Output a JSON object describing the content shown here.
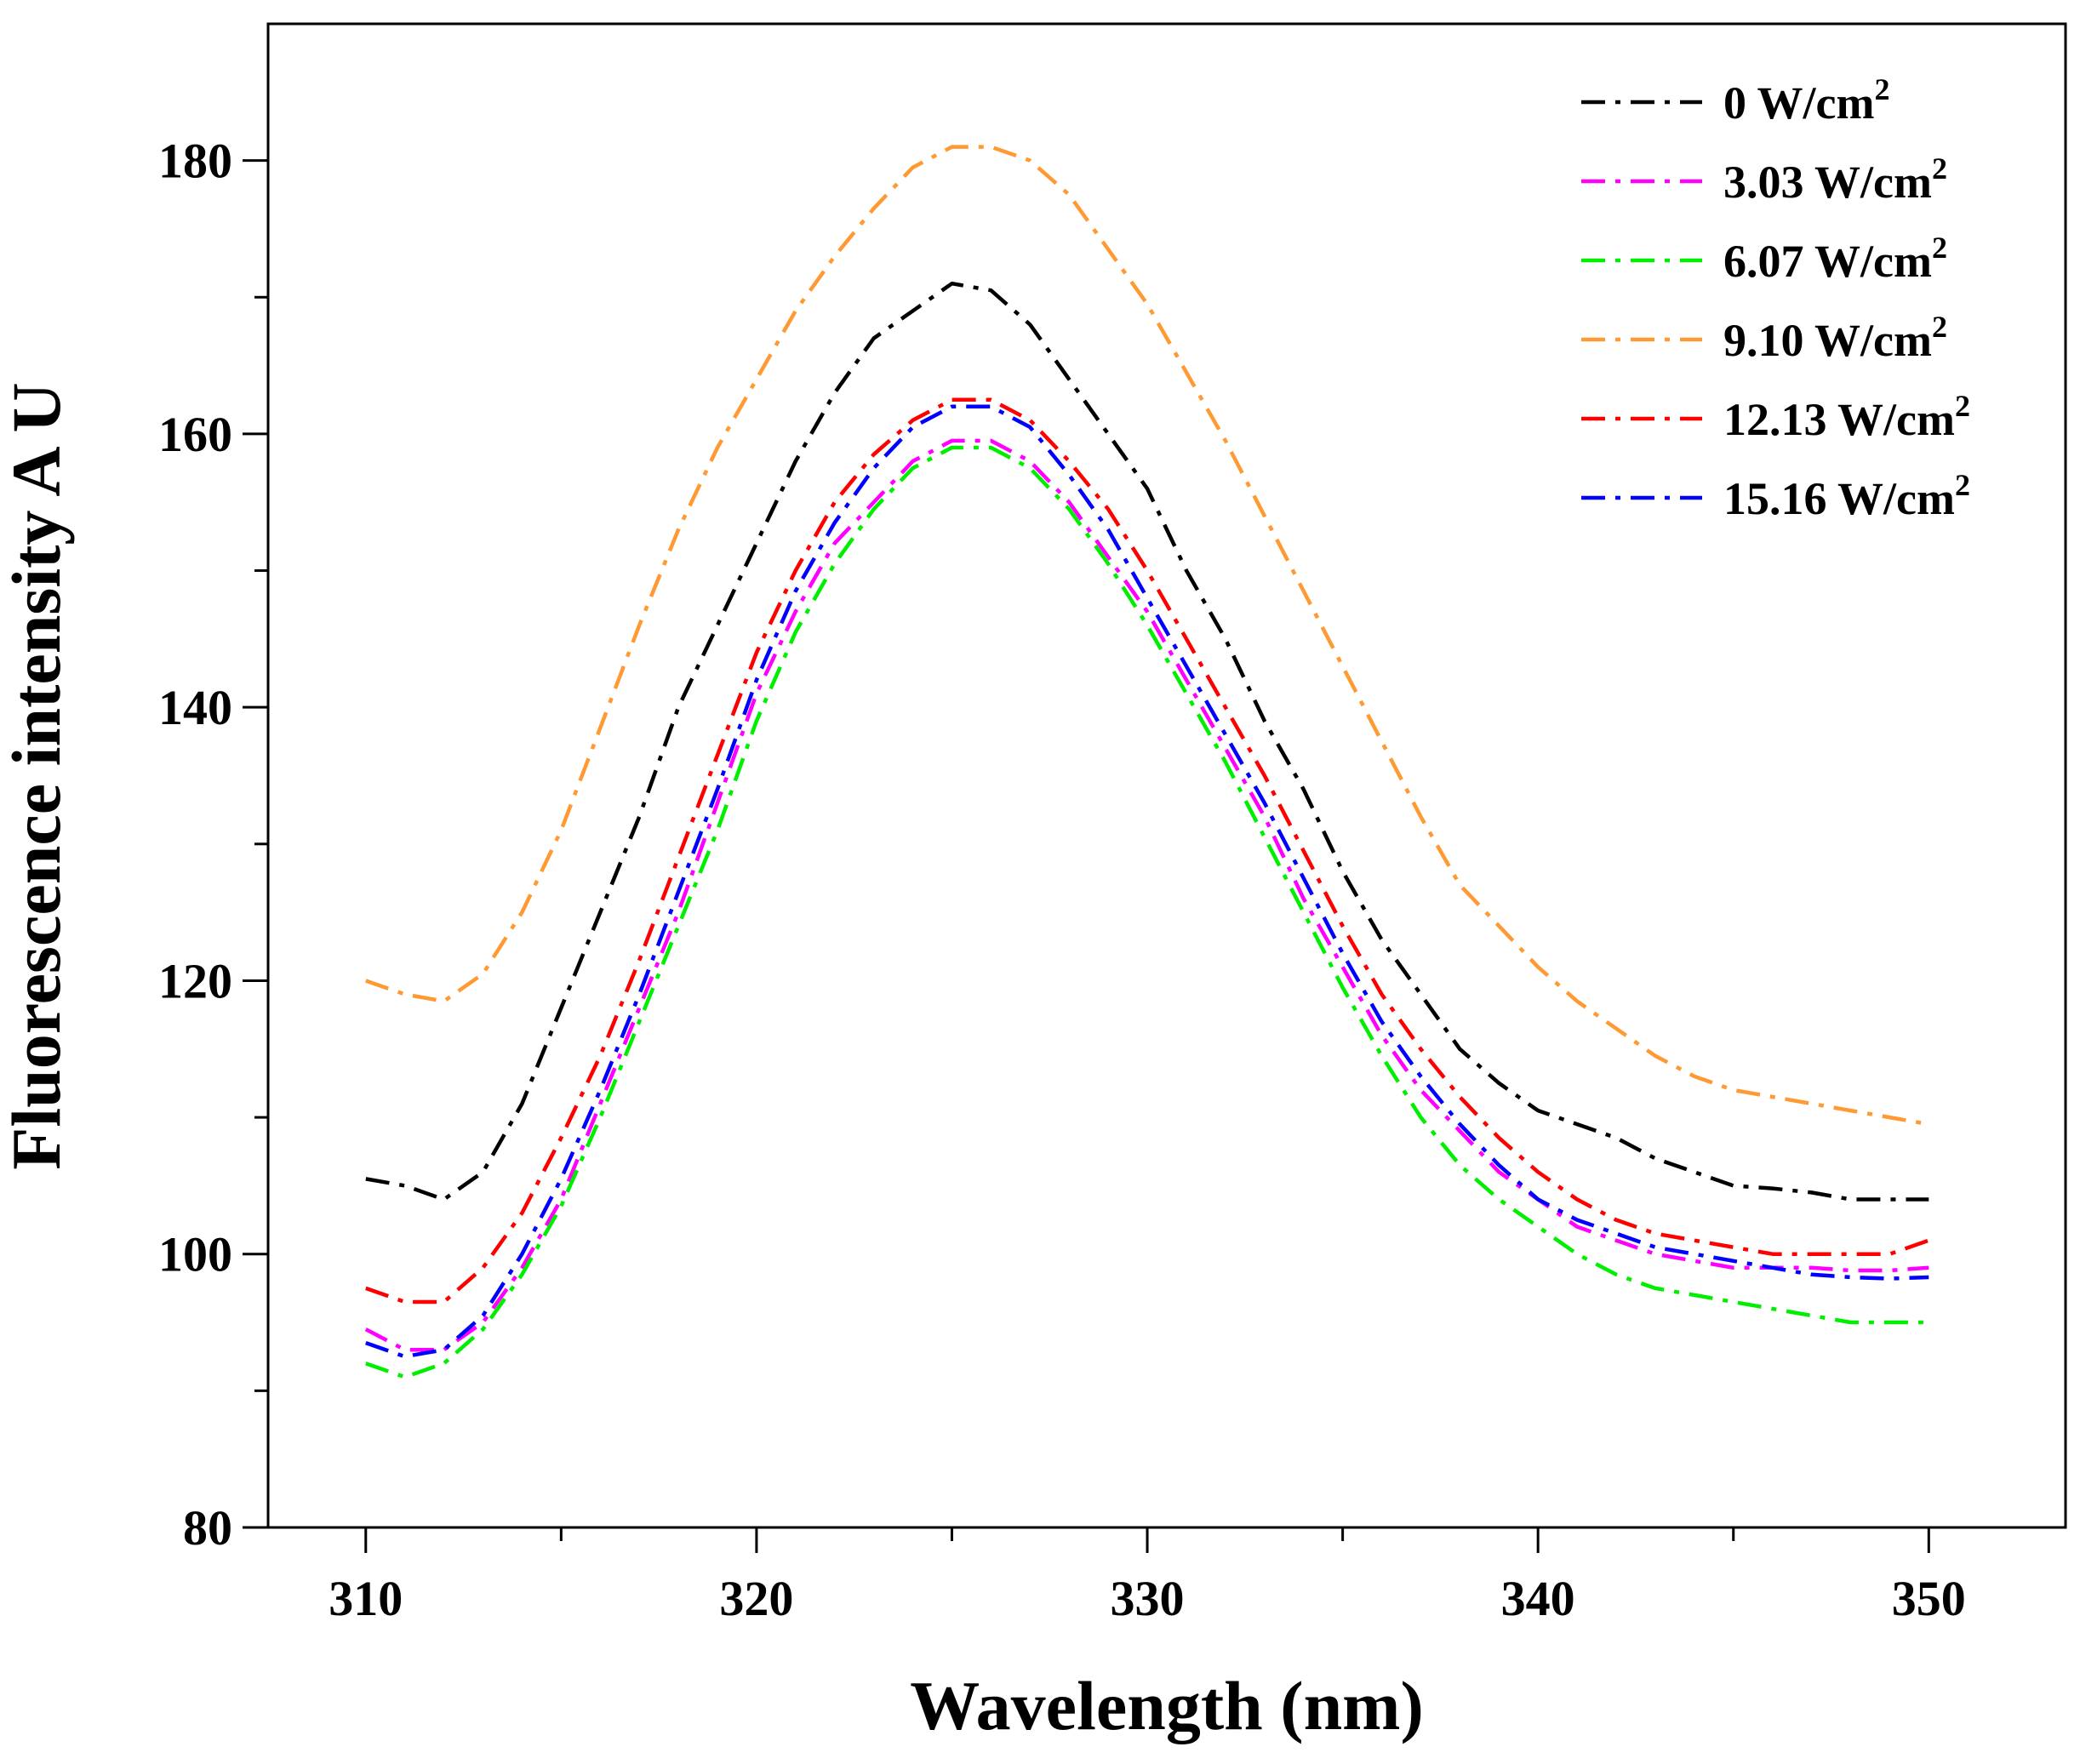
{
  "chart_data": {
    "type": "line",
    "title": "",
    "xlabel": "Wavelength (nm)",
    "ylabel": "Fluorescence intensity A U",
    "xlim": [
      307.5,
      353.5
    ],
    "ylim": [
      80,
      190
    ],
    "x_ticks": [
      310,
      320,
      330,
      340,
      350
    ],
    "x_tick_labels": [
      "310",
      "320",
      "330",
      "340",
      "350"
    ],
    "x_minor_ticks": [
      315,
      325,
      335,
      345
    ],
    "y_ticks": [
      80,
      100,
      120,
      140,
      160,
      180
    ],
    "y_tick_labels": [
      "80",
      "100",
      "120",
      "140",
      "160",
      "180"
    ],
    "y_minor_ticks": [
      90,
      110,
      130,
      150,
      170
    ],
    "legend_position": "top-right",
    "line_style": "dash-dot",
    "x": [
      310,
      311,
      312,
      313,
      314,
      315,
      316,
      317,
      318,
      319,
      320,
      321,
      322,
      323,
      324,
      325,
      326,
      327,
      328,
      329,
      330,
      331,
      332,
      333,
      334,
      335,
      336,
      337,
      338,
      339,
      340,
      341,
      342,
      343,
      344,
      345,
      346,
      347,
      348,
      349,
      350
    ],
    "series": [
      {
        "name": "0 W/cm",
        "superscript": "2",
        "color": "#000000",
        "values": [
          105.5,
          105,
          104,
          106,
          111,
          118,
          125,
          132,
          140,
          146,
          152,
          158,
          163,
          167,
          169,
          171,
          170.5,
          168,
          164,
          160,
          156,
          150,
          145,
          139,
          134,
          128,
          123,
          119,
          115,
          112.5,
          110.5,
          109.5,
          108.5,
          107,
          106,
          105,
          104.8,
          104.5,
          104,
          104,
          104
        ]
      },
      {
        "name": "3.03 W/cm",
        "superscript": "2",
        "color": "#FF00FF",
        "values": [
          94.5,
          93,
          93,
          95,
          99,
          104,
          111,
          118,
          125,
          133,
          141,
          147,
          152,
          155,
          158,
          159.5,
          159.5,
          158,
          155,
          151,
          147,
          142,
          137,
          132,
          126,
          121,
          116,
          112,
          109,
          106,
          104,
          102,
          101,
          100,
          99.5,
          99,
          99,
          99,
          98.8,
          98.8,
          99
        ]
      },
      {
        "name": "6.07 W/cm",
        "superscript": "2",
        "color": "#00EE00",
        "values": [
          92,
          91,
          92,
          94.5,
          98.5,
          103.5,
          110,
          117,
          124,
          131,
          139,
          145.5,
          150.5,
          154.5,
          157.5,
          159,
          159,
          157.5,
          154.5,
          150.5,
          146,
          141,
          136,
          130.5,
          125,
          119.5,
          114.5,
          110,
          106.5,
          104,
          102,
          100,
          98.5,
          97.5,
          97,
          96.5,
          96,
          95.5,
          95,
          95,
          95
        ]
      },
      {
        "name": "9.10 W/cm",
        "superscript": "2",
        "color": "#FF9933",
        "values": [
          120,
          119,
          118.5,
          120.5,
          125,
          131,
          138.5,
          146,
          153,
          159,
          164,
          169,
          173,
          176.5,
          179.5,
          181,
          181,
          180,
          177.5,
          173.5,
          169.5,
          164.5,
          159.5,
          154,
          148.5,
          143,
          137.5,
          132,
          127,
          124,
          121,
          118.5,
          116.5,
          114.5,
          113,
          112,
          111.5,
          111,
          110.5,
          110,
          109.5
        ]
      },
      {
        "name": "12.13 W/cm",
        "superscript": "2",
        "color": "#FF0000",
        "values": [
          97.5,
          96.5,
          96.5,
          99,
          103,
          108.5,
          114.5,
          121.5,
          129,
          136.5,
          144,
          150,
          155,
          158.5,
          161,
          162.5,
          162.5,
          161,
          158,
          154.5,
          150,
          145,
          140,
          135,
          129.5,
          124,
          119,
          115,
          111.5,
          108.5,
          106,
          104,
          102.5,
          101.5,
          101,
          100.5,
          100,
          100,
          100,
          100,
          101
        ]
      },
      {
        "name": "15.16 W/cm",
        "superscript": "2",
        "color": "#0000FF",
        "values": [
          93.5,
          92.5,
          93,
          95.5,
          100,
          105.5,
          112,
          119,
          126.5,
          134,
          142,
          148.5,
          153.5,
          157.5,
          160.5,
          162,
          162,
          160.5,
          157,
          153,
          148,
          143,
          138,
          133,
          127.5,
          122,
          117,
          113,
          109.5,
          106.5,
          104,
          102.5,
          101.5,
          100.5,
          100,
          99.5,
          99,
          98.5,
          98.3,
          98.2,
          98.3
        ]
      }
    ]
  }
}
